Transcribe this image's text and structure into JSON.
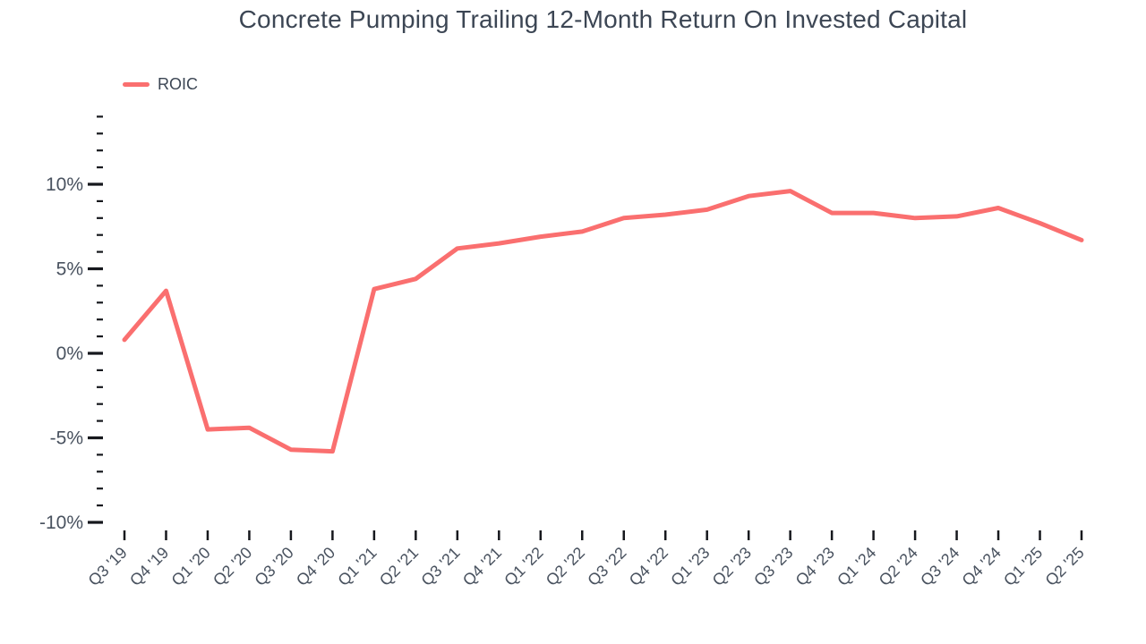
{
  "page": {
    "background": "#ffffff"
  },
  "header": {
    "title": "Concrete Pumping Trailing 12-Month Return On Invested Capital"
  },
  "legend": {
    "items": [
      {
        "label": "ROIC",
        "color": "#fa6f6f"
      }
    ]
  },
  "colors": {
    "series": "#fa6f6f",
    "title_text": "#3c4654",
    "axis_text": "#49525f",
    "tick": "#16181d",
    "background": "#ffffff"
  },
  "chart_data": {
    "type": "line",
    "title": "Concrete Pumping Trailing 12-Month Return On Invested Capital",
    "categories": [
      "Q3 '19",
      "Q4 '19",
      "Q1 '20",
      "Q2 '20",
      "Q3 '20",
      "Q4 '20",
      "Q1 '21",
      "Q2 '21",
      "Q3 '21",
      "Q4 '21",
      "Q1 '22",
      "Q2 '22",
      "Q3 '22",
      "Q4 '22",
      "Q1 '23",
      "Q2 '23",
      "Q3 '23",
      "Q4 '23",
      "Q1 '24",
      "Q2 '24",
      "Q3 '24",
      "Q4 '24",
      "Q1 '25",
      "Q2 '25"
    ],
    "series": [
      {
        "name": "ROIC",
        "color": "#fa6f6f",
        "values": [
          0.8,
          3.7,
          -4.5,
          -4.4,
          -5.7,
          -5.8,
          3.8,
          4.4,
          6.2,
          6.5,
          6.9,
          7.2,
          8.0,
          8.2,
          8.5,
          9.3,
          9.6,
          8.3,
          8.3,
          8.0,
          8.1,
          8.6,
          7.7,
          6.7
        ]
      }
    ],
    "xlabel": "",
    "ylabel": "",
    "y_axis": {
      "unit": "%",
      "min": -10,
      "max": 14,
      "minor_step": 1,
      "major_step": 5,
      "labeled_ticks": [
        {
          "value": 10,
          "label": "10%"
        },
        {
          "value": 5,
          "label": "5%"
        },
        {
          "value": 0,
          "label": "0%"
        },
        {
          "value": -5,
          "label": "-5%"
        },
        {
          "value": -10,
          "label": "-10%"
        }
      ]
    },
    "grid": false,
    "legend_position": "top-left",
    "x_tick_rotation": -45
  }
}
